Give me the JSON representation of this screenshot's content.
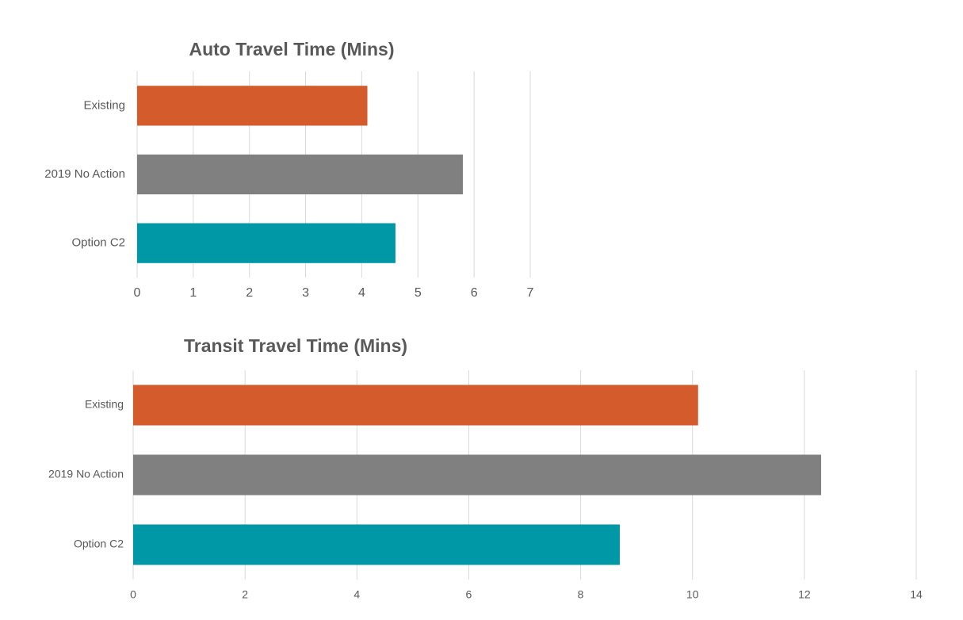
{
  "chart_data": [
    {
      "type": "barh",
      "title": "Auto Travel Time (Mins)",
      "categories": [
        "Existing",
        "2019 No Action",
        "Option C2"
      ],
      "values": [
        4.1,
        5.8,
        4.6
      ],
      "colors": [
        "#d45b2b",
        "#808080",
        "#0098a6"
      ],
      "xlim": [
        0,
        7
      ],
      "xticks": [
        0,
        1,
        2,
        3,
        4,
        5,
        6,
        7
      ],
      "grid": true
    },
    {
      "type": "barh",
      "title": "Transit Travel Time (Mins)",
      "categories": [
        "Existing",
        "2019 No Action",
        "Option C2"
      ],
      "values": [
        10.1,
        12.3,
        8.7
      ],
      "colors": [
        "#d45b2b",
        "#808080",
        "#0098a6"
      ],
      "xlim": [
        0,
        14
      ],
      "xticks": [
        0,
        2,
        4,
        6,
        8,
        10,
        12,
        14
      ],
      "grid": true
    }
  ]
}
